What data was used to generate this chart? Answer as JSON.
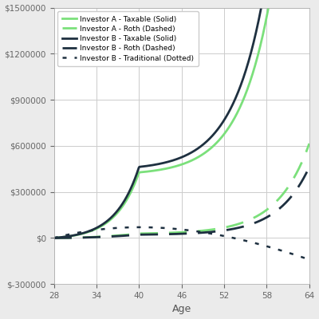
{
  "x_start": 28,
  "x_end": 64,
  "x_ticks": [
    28,
    34,
    40,
    46,
    52,
    58,
    64
  ],
  "y_ticks": [
    -300000,
    0,
    300000,
    600000,
    900000,
    1200000,
    1500000
  ],
  "xlabel": "Age",
  "background_color": "#ebebeb",
  "plot_background": "#ffffff",
  "grid_color": "#cccccc",
  "legend_entries": [
    "Investor A - Taxable (Solid)",
    "Investor A - Roth (Dashed)",
    "Investor B - Taxable (Solid)",
    "Investor B - Roth (Dashed)",
    "Investor B - Traditional (Dotted)"
  ],
  "color_a": "#7be07b",
  "color_b": "#1e3040",
  "lw": 2.0
}
